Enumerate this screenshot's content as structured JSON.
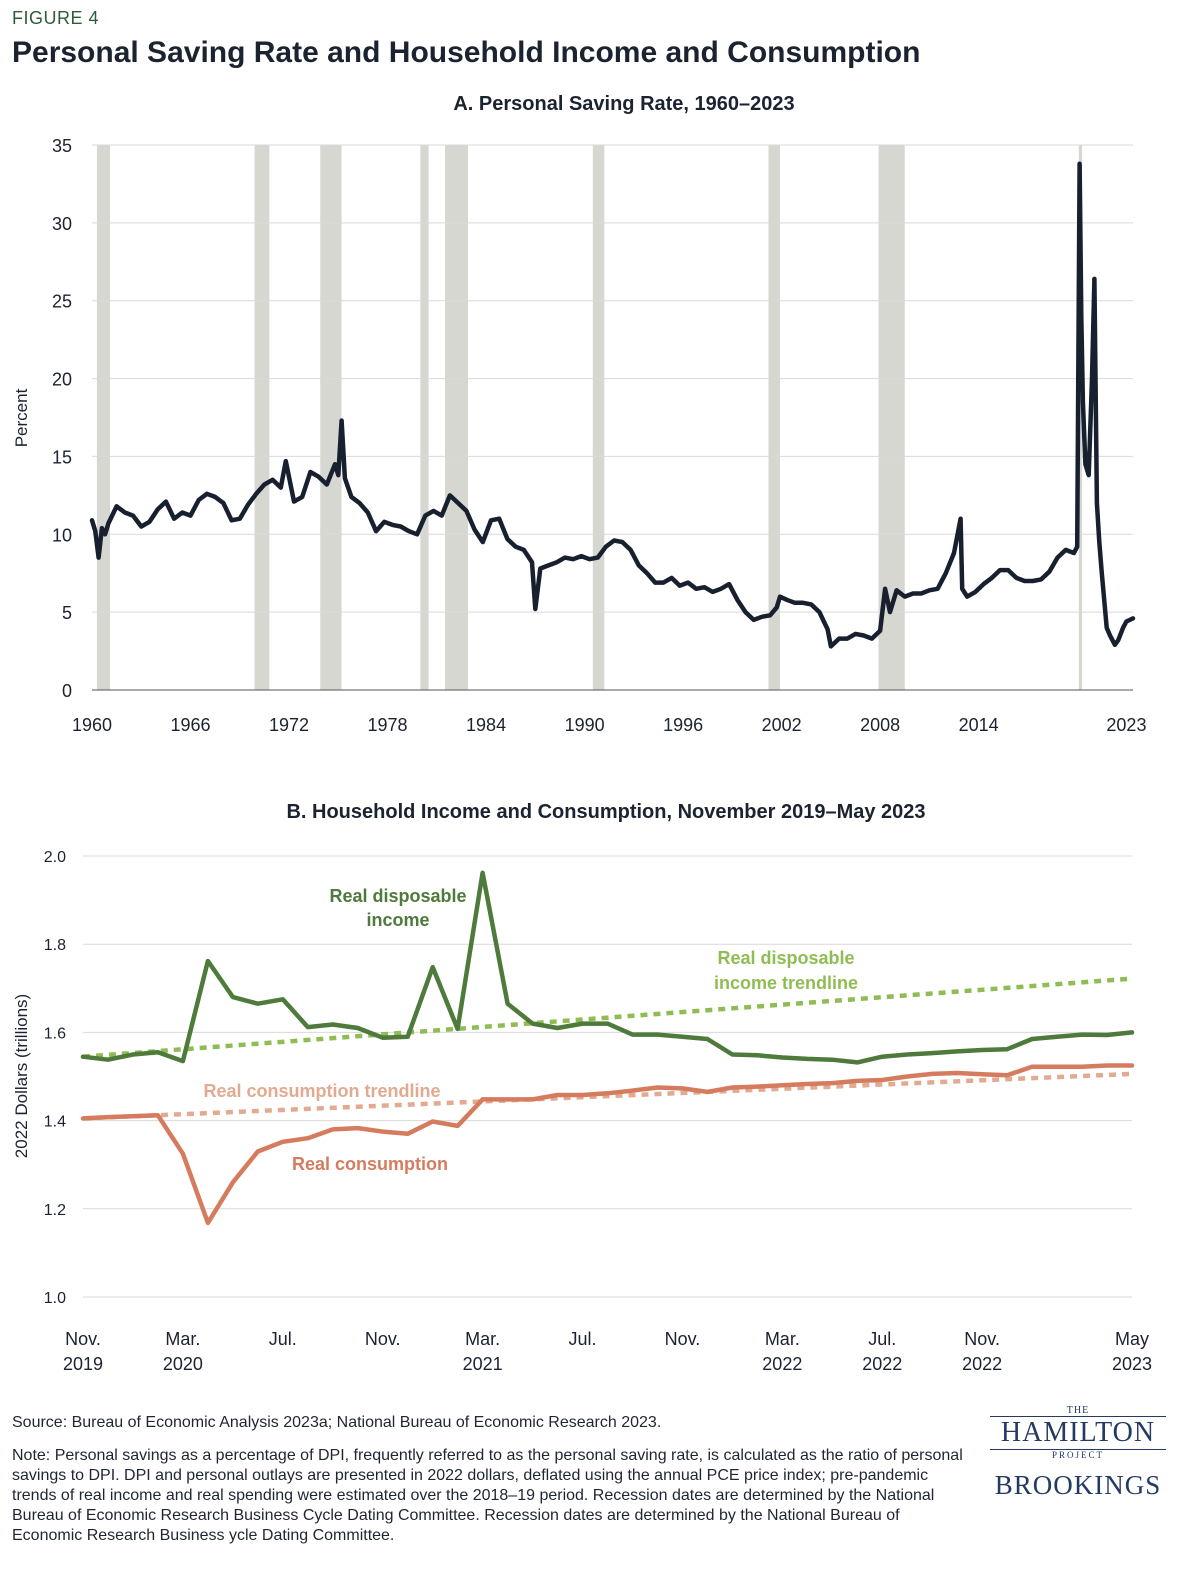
{
  "figure_label": "FIGURE 4",
  "figure_title": "Personal Saving Rate and Household Income and Consumption",
  "source": "Source: Bureau of Economic Analysis 2023a; National Bureau of Economic Research 2023.",
  "note": "Note: Personal savings as a percentage of DPI, frequently referred to as the personal saving rate, is calculated as the ratio of personal savings to DPI. DPI and personal outlays are presented in 2022 dollars, deflated using the annual PCE price index; pre-pandemic trends of real income and real spending were estimated over the 2018–19 period. Recession dates are determined by the National Bureau of Economic Research Business Cycle Dating Committee. Recession dates are determined by the National Bureau of Economic Research Business ycle Dating Committee.",
  "logos": {
    "hamilton_the": "THE",
    "hamilton_main": "HAMILTON",
    "hamilton_project": "PROJECT",
    "brookings": "BROOKINGS"
  },
  "colors": {
    "saving": "#18202f",
    "recession": "#d7d7d2",
    "income": "#4e7a3c",
    "income_trend": "#8fbd54",
    "consumption": "#d67c5e",
    "consumption_trend": "#e2aa91",
    "grid": "#d9d9d9"
  },
  "chart_data": [
    {
      "type": "line",
      "title": "A. Personal Saving Rate, 1960–2023",
      "xlabel": "",
      "ylabel": "Percent",
      "xlim": [
        1960,
        2023.4
      ],
      "ylim": [
        0,
        35
      ],
      "x_ticks": [
        1960,
        1966,
        1972,
        1978,
        1984,
        1990,
        1996,
        2002,
        2008,
        2014,
        2023
      ],
      "x_tick_labels": [
        "1960",
        "1966",
        "1972",
        "1978",
        "1984",
        "1990",
        "1996",
        "2002",
        "2008",
        "2014",
        "2023"
      ],
      "y_ticks": [
        0,
        5,
        10,
        15,
        20,
        25,
        30,
        35
      ],
      "y_tick_labels": [
        "0",
        "5",
        "10",
        "15",
        "20",
        "25",
        "30",
        "35"
      ],
      "grid": true,
      "recessions": [
        [
          1960.3,
          1961.1
        ],
        [
          1969.9,
          1970.8
        ],
        [
          1973.9,
          1975.2
        ],
        [
          1980.0,
          1980.5
        ],
        [
          1981.5,
          1982.9
        ],
        [
          1990.5,
          1991.2
        ],
        [
          2001.2,
          2001.9
        ],
        [
          2007.9,
          2009.5
        ],
        [
          2020.1,
          2020.3
        ]
      ],
      "series": [
        {
          "x": [
            1960.0,
            1960.2,
            1960.4,
            1960.6,
            1960.8,
            1961.0,
            1961.5,
            1962.0,
            1962.5,
            1963.0,
            1963.5,
            1964.0,
            1964.5,
            1965.0,
            1965.5,
            1966.0,
            1966.5,
            1967.0,
            1967.5,
            1968.0,
            1968.5,
            1969.0,
            1969.5,
            1970.0,
            1970.5,
            1971.0,
            1971.5,
            1971.8,
            1972.3,
            1972.8,
            1973.3,
            1973.8,
            1974.3,
            1974.8,
            1975.0,
            1975.2,
            1975.4,
            1975.8,
            1976.3,
            1976.8,
            1977.3,
            1977.8,
            1978.3,
            1978.8,
            1979.3,
            1979.8,
            1980.3,
            1980.8,
            1981.3,
            1981.8,
            1982.3,
            1982.8,
            1983.3,
            1983.8,
            1984.3,
            1984.8,
            1985.3,
            1985.8,
            1986.3,
            1986.8,
            1987.0,
            1987.3,
            1987.8,
            1988.3,
            1988.8,
            1989.3,
            1989.8,
            1990.3,
            1990.8,
            1991.3,
            1991.8,
            1992.3,
            1992.8,
            1993.3,
            1993.8,
            1994.3,
            1994.8,
            1995.3,
            1995.8,
            1996.3,
            1996.8,
            1997.3,
            1997.8,
            1998.3,
            1998.8,
            1999.3,
            1999.8,
            2000.3,
            2000.8,
            2001.3,
            2001.7,
            2001.9,
            2002.3,
            2002.8,
            2003.3,
            2003.8,
            2004.3,
            2004.8,
            2005.0,
            2005.5,
            2006.0,
            2006.5,
            2007.0,
            2007.5,
            2008.0,
            2008.3,
            2008.6,
            2009.0,
            2009.5,
            2010.0,
            2010.5,
            2011.0,
            2011.5,
            2012.0,
            2012.5,
            2012.9,
            2013.0,
            2013.3,
            2013.8,
            2014.3,
            2014.8,
            2015.3,
            2015.8,
            2016.3,
            2016.8,
            2017.3,
            2017.8,
            2018.3,
            2018.8,
            2019.3,
            2019.8,
            2020.0,
            2020.15,
            2020.25,
            2020.35,
            2020.5,
            2020.7,
            2020.9,
            2021.05,
            2021.2,
            2021.35,
            2021.5,
            2021.8,
            2022.0,
            2022.3,
            2022.5,
            2022.8,
            2023.0,
            2023.4
          ],
          "y": [
            10.9,
            10.2,
            8.5,
            10.4,
            10.0,
            10.7,
            11.8,
            11.4,
            11.2,
            10.5,
            10.8,
            11.6,
            12.1,
            11.0,
            11.4,
            11.2,
            12.2,
            12.6,
            12.4,
            12.0,
            10.9,
            11.0,
            11.9,
            12.6,
            13.2,
            13.5,
            13.0,
            14.7,
            12.1,
            12.4,
            14.0,
            13.7,
            13.2,
            14.5,
            13.8,
            17.3,
            13.6,
            12.4,
            12.0,
            11.4,
            10.2,
            10.8,
            10.6,
            10.5,
            10.2,
            10.0,
            11.2,
            11.5,
            11.2,
            12.5,
            12.0,
            11.5,
            10.3,
            9.5,
            10.9,
            11.0,
            9.7,
            9.2,
            9.0,
            8.2,
            5.2,
            7.8,
            8.0,
            8.2,
            8.5,
            8.4,
            8.6,
            8.4,
            8.5,
            9.2,
            9.6,
            9.5,
            9.0,
            8.0,
            7.5,
            6.9,
            6.9,
            7.2,
            6.7,
            6.9,
            6.5,
            6.6,
            6.3,
            6.5,
            6.8,
            5.8,
            5.0,
            4.5,
            4.7,
            4.8,
            5.3,
            6.0,
            5.8,
            5.6,
            5.6,
            5.5,
            5.0,
            3.9,
            2.8,
            3.3,
            3.3,
            3.6,
            3.5,
            3.3,
            3.8,
            6.5,
            5.0,
            6.4,
            6.0,
            6.2,
            6.2,
            6.4,
            6.5,
            7.5,
            8.8,
            11.0,
            6.5,
            6.0,
            6.3,
            6.8,
            7.2,
            7.7,
            7.7,
            7.2,
            7.0,
            7.0,
            7.1,
            7.6,
            8.5,
            9.0,
            8.8,
            9.2,
            33.8,
            24.0,
            18.5,
            14.5,
            13.8,
            20.0,
            26.4,
            12.0,
            9.5,
            7.5,
            4.0,
            3.5,
            2.9,
            3.2,
            4.0,
            4.4,
            4.6
          ]
        }
      ]
    },
    {
      "type": "line",
      "title": "B. Household Income and Consumption, November 2019–May 2023",
      "xlabel": "",
      "ylabel": "2022 Dollars (trillions)",
      "xlim": [
        0,
        42
      ],
      "ylim": [
        1.0,
        2.0
      ],
      "x_ticks": [
        0,
        4,
        8,
        12,
        16,
        20,
        24,
        28,
        32,
        36,
        42
      ],
      "x_tick_labels": [
        [
          "Nov.",
          "2019"
        ],
        [
          "Mar.",
          "2020"
        ],
        [
          "Jul.",
          ""
        ],
        [
          "Nov.",
          ""
        ],
        [
          "Mar.",
          "2021"
        ],
        [
          "Jul.",
          ""
        ],
        [
          "Nov.",
          ""
        ],
        [
          "Mar.",
          "2022"
        ],
        [
          "Jul.",
          "2022"
        ],
        [
          "Nov.",
          "2022"
        ],
        [
          "May",
          "2023"
        ]
      ],
      "y_ticks": [
        1.0,
        1.2,
        1.4,
        1.6,
        1.8,
        2.0
      ],
      "y_tick_labels": [
        "1.0",
        "1.2",
        "1.4",
        "1.6",
        "1.8",
        "2.0"
      ],
      "grid": true,
      "series": [
        {
          "name": "Real disposable income",
          "style": "solid",
          "color": "#4e7a3c",
          "x": [
            0,
            1,
            2,
            3,
            4,
            5,
            6,
            7,
            8,
            9,
            10,
            11,
            12,
            13,
            14,
            15,
            16,
            17,
            18,
            19,
            20,
            21,
            22,
            23,
            24,
            25,
            26,
            27,
            28,
            29,
            30,
            31,
            32,
            33,
            34,
            35,
            36,
            37,
            38,
            39,
            40,
            41,
            42
          ],
          "y": [
            1.545,
            1.538,
            1.55,
            1.555,
            1.535,
            1.762,
            1.68,
            1.665,
            1.675,
            1.612,
            1.618,
            1.61,
            1.588,
            1.59,
            1.748,
            1.608,
            1.962,
            1.665,
            1.62,
            1.61,
            1.62,
            1.62,
            1.595,
            1.595,
            1.59,
            1.585,
            1.55,
            1.548,
            1.543,
            1.54,
            1.538,
            1.532,
            1.545,
            1.55,
            1.553,
            1.557,
            1.56,
            1.562,
            1.585,
            1.59,
            1.595,
            1.594,
            1.6
          ]
        },
        {
          "name": "Real disposable income trendline",
          "style": "dotted",
          "color": "#8fbd54",
          "x": [
            0,
            42
          ],
          "y": [
            1.545,
            1.722
          ]
        },
        {
          "name": "Real consumption",
          "style": "solid",
          "color": "#d67c5e",
          "x": [
            0,
            1,
            2,
            3,
            4,
            5,
            6,
            7,
            8,
            9,
            10,
            11,
            12,
            13,
            14,
            15,
            16,
            17,
            18,
            19,
            20,
            21,
            22,
            23,
            24,
            25,
            26,
            27,
            28,
            29,
            30,
            31,
            32,
            33,
            34,
            35,
            36,
            37,
            38,
            39,
            40,
            41,
            42
          ],
          "y": [
            1.405,
            1.408,
            1.41,
            1.412,
            1.325,
            1.168,
            1.26,
            1.33,
            1.352,
            1.36,
            1.38,
            1.383,
            1.375,
            1.37,
            1.398,
            1.388,
            1.448,
            1.448,
            1.448,
            1.458,
            1.458,
            1.462,
            1.468,
            1.475,
            1.473,
            1.465,
            1.475,
            1.477,
            1.48,
            1.483,
            1.485,
            1.49,
            1.492,
            1.5,
            1.506,
            1.508,
            1.505,
            1.503,
            1.522,
            1.522,
            1.522,
            1.525,
            1.525
          ]
        },
        {
          "name": "Real consumption trendline",
          "style": "dotted",
          "color": "#e2aa91",
          "x": [
            0,
            42
          ],
          "y": [
            1.405,
            1.506
          ]
        }
      ],
      "annotations": [
        "Real disposable income",
        "Real disposable income trendline",
        "Real consumption trendline",
        "Real consumption"
      ]
    }
  ]
}
